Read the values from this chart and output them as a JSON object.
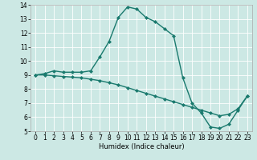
{
  "xlabel": "Humidex (Indice chaleur)",
  "ylabel": "",
  "background_color": "#cce8e4",
  "line_color": "#1a7a6e",
  "grid_color": "#ffffff",
  "x_ticks": [
    0,
    1,
    2,
    3,
    4,
    5,
    6,
    7,
    8,
    9,
    10,
    11,
    12,
    13,
    14,
    15,
    16,
    17,
    18,
    19,
    20,
    21,
    22,
    23
  ],
  "ylim": [
    5,
    14
  ],
  "xlim": [
    -0.5,
    23.5
  ],
  "line1_x": [
    0,
    1,
    2,
    3,
    4,
    5,
    6,
    7,
    8,
    9,
    10,
    11,
    12,
    13,
    14,
    15,
    16,
    17,
    18,
    19,
    20,
    21,
    22,
    23
  ],
  "line1_y": [
    9.0,
    9.1,
    9.3,
    9.2,
    9.2,
    9.2,
    9.3,
    10.3,
    11.4,
    13.1,
    13.85,
    13.7,
    13.1,
    12.8,
    12.3,
    11.8,
    8.8,
    7.0,
    6.3,
    5.3,
    5.2,
    5.5,
    6.5,
    7.5
  ],
  "line2_x": [
    0,
    1,
    2,
    3,
    4,
    5,
    6,
    7,
    8,
    9,
    10,
    11,
    12,
    13,
    14,
    15,
    16,
    17,
    18,
    19,
    20,
    21,
    22,
    23
  ],
  "line2_y": [
    9.0,
    9.0,
    8.95,
    8.9,
    8.85,
    8.8,
    8.7,
    8.6,
    8.45,
    8.3,
    8.1,
    7.9,
    7.7,
    7.5,
    7.3,
    7.1,
    6.9,
    6.7,
    6.5,
    6.3,
    6.1,
    6.2,
    6.6,
    7.5
  ],
  "marker": "D",
  "markersize": 2,
  "linewidth": 1.0,
  "tick_fontsize": 5.5,
  "xlabel_fontsize": 6.0
}
